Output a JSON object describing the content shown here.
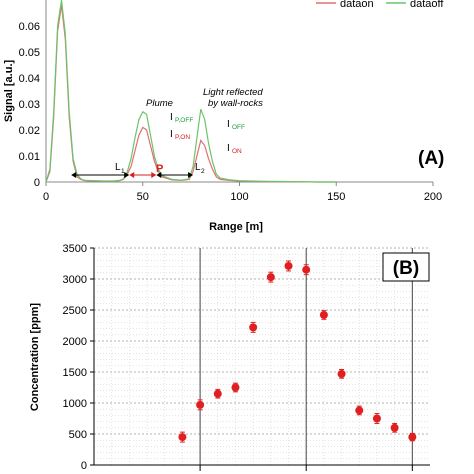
{
  "chart_data": [
    {
      "type": "line",
      "panel_label": "(A)",
      "xlabel": "Range [m]",
      "ylabel": "Signal [a.u.]",
      "xlim": [
        0,
        200
      ],
      "ylim": [
        0,
        0.07
      ],
      "x_ticks": [
        "0",
        "50",
        "100",
        "150",
        "200"
      ],
      "y_ticks": [
        "0",
        "0.01",
        "0.02",
        "0.03",
        "0.04",
        "0.05",
        "0.06"
      ],
      "legend": {
        "placement": "top-right"
      },
      "series": [
        {
          "name": "dataon",
          "color": "#e07070",
          "x": [
            0,
            2,
            4,
            6,
            8,
            10,
            12,
            14,
            16,
            18,
            20,
            25,
            30,
            35,
            38,
            40,
            42,
            44,
            46,
            48,
            50,
            52,
            54,
            56,
            58,
            60,
            65,
            70,
            74,
            76,
            78,
            80,
            82,
            84,
            86,
            88,
            90,
            95,
            100,
            110,
            120,
            130,
            140,
            150
          ],
          "y": [
            0,
            0.004,
            0.025,
            0.058,
            0.068,
            0.055,
            0.025,
            0.008,
            0.002,
            0.001,
            0.0005,
            0.0004,
            0.0003,
            0.0003,
            0.0005,
            0.001,
            0.003,
            0.006,
            0.012,
            0.018,
            0.021,
            0.02,
            0.014,
            0.008,
            0.004,
            0.002,
            0.0008,
            0.0006,
            0.001,
            0.004,
            0.01,
            0.016,
            0.014,
            0.009,
            0.005,
            0.002,
            0.001,
            0.0006,
            0.0004,
            0.0002,
            0.0001,
            0.0001,
            0,
            0
          ]
        },
        {
          "name": "dataoff",
          "color": "#6cc36c",
          "x": [
            0,
            2,
            4,
            6,
            8,
            10,
            12,
            14,
            16,
            18,
            20,
            25,
            30,
            35,
            38,
            40,
            42,
            44,
            46,
            48,
            50,
            52,
            54,
            56,
            58,
            60,
            65,
            70,
            74,
            76,
            78,
            80,
            82,
            84,
            86,
            88,
            90,
            95,
            100,
            110,
            120,
            130,
            140,
            150
          ],
          "y": [
            0,
            0.005,
            0.027,
            0.06,
            0.07,
            0.057,
            0.027,
            0.009,
            0.003,
            0.0012,
            0.0006,
            0.0005,
            0.0004,
            0.0004,
            0.0006,
            0.0012,
            0.004,
            0.009,
            0.017,
            0.024,
            0.027,
            0.026,
            0.018,
            0.01,
            0.005,
            0.0025,
            0.001,
            0.0007,
            0.0012,
            0.006,
            0.017,
            0.028,
            0.024,
            0.015,
            0.008,
            0.003,
            0.0015,
            0.0008,
            0.0005,
            0.0003,
            0.0002,
            0.0001,
            0,
            0
          ]
        }
      ],
      "annotations": {
        "plume_label": "Plume",
        "reflected_label_1": "Light reflected",
        "reflected_label_2": "by wall-rocks",
        "i_poff": "I",
        "i_poff_sub": "P,OFF",
        "i_pon": "I",
        "i_pon_sub": "P,ON",
        "i_off": "I",
        "i_off_sub": "OFF",
        "i_on": "I",
        "i_on_sub": "ON",
        "l1": "L",
        "l1_sub": "1",
        "p": "P",
        "l2": "L",
        "l2_sub": "2",
        "color_off": "#1a9a3a",
        "color_on": "#d42020"
      },
      "segments": {
        "l1": [
          13,
          43
        ],
        "p": [
          43,
          57
        ],
        "l2": [
          57,
          76
        ]
      }
    },
    {
      "type": "scatter",
      "panel_label": "(B)",
      "ylabel": "Concentration [ppm]",
      "ylim": [
        0,
        3500
      ],
      "y_ticks": [
        "0",
        "500",
        "1000",
        "1500",
        "2000",
        "2500",
        "3000",
        "3500"
      ],
      "grid": true,
      "marker_color": "#e02020",
      "x": [
        5,
        6,
        7,
        8,
        9,
        10,
        11,
        12,
        13,
        14,
        15,
        16,
        17,
        18
      ],
      "y": [
        450,
        970,
        1150,
        1250,
        2220,
        3030,
        3210,
        3150,
        2420,
        1470,
        880,
        750,
        600,
        450
      ],
      "err": [
        80,
        80,
        70,
        70,
        80,
        80,
        80,
        80,
        70,
        70,
        70,
        80,
        70,
        60
      ]
    }
  ]
}
